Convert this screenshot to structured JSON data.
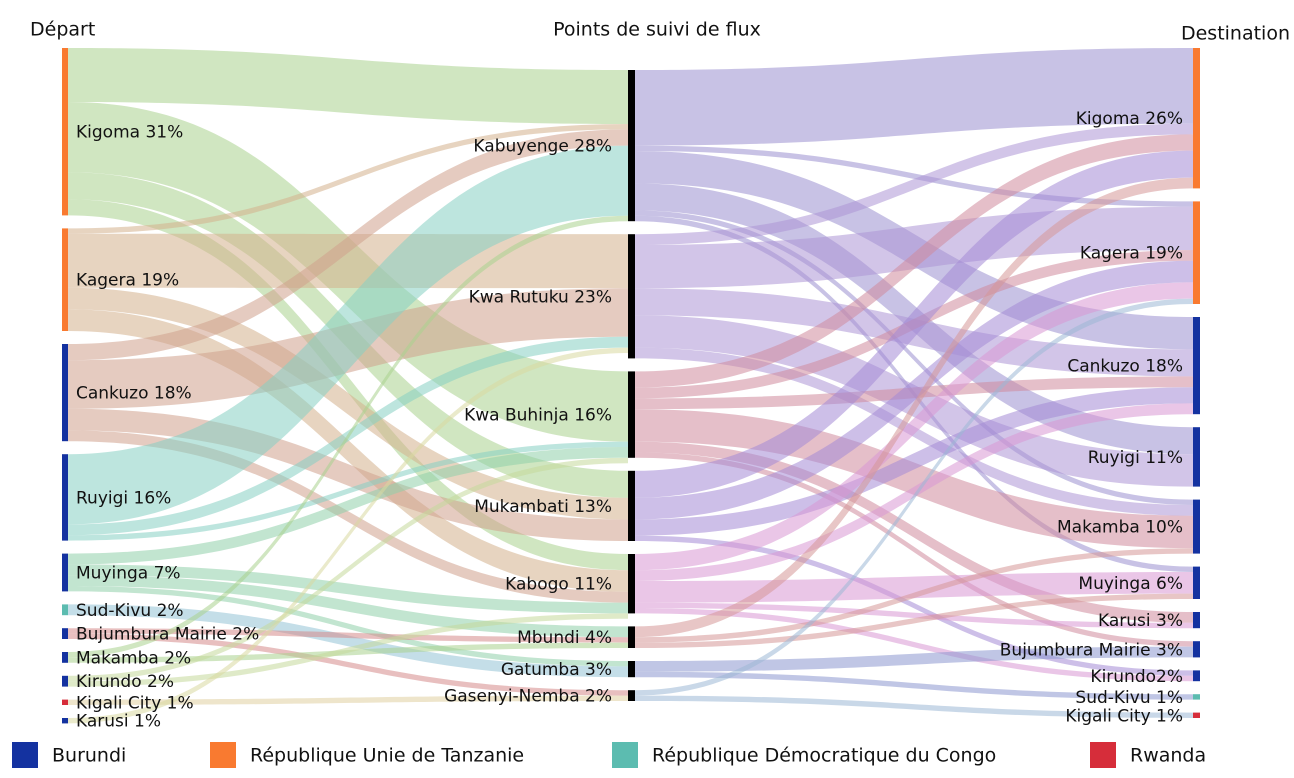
{
  "columns": [
    {
      "title": "Départ",
      "nodes": [
        {
          "label": "Kigoma 31%",
          "value": 31,
          "color": "#f97a30",
          "flow_color": "#a9d18e"
        },
        {
          "label": "Kagera 19%",
          "value": 19,
          "color": "#f97a30",
          "flow_color": "#d4b08c"
        },
        {
          "label": "Cankuzo 18%",
          "value": 18,
          "color": "#1432a0",
          "flow_color": "#d0a08c"
        },
        {
          "label": "Ruyigi 16%",
          "value": 16,
          "color": "#1432a0",
          "flow_color": "#86cfc2"
        },
        {
          "label": "Muyinga 7%",
          "value": 7,
          "color": "#1432a0",
          "flow_color": "#8fcfaa"
        },
        {
          "label": "Sud-Kivu 2%",
          "value": 2,
          "color": "#5cbcb0",
          "flow_color": "#94c3d6"
        },
        {
          "label": "Bujumbura Mairie 2%",
          "value": 2,
          "color": "#1432a0",
          "flow_color": "#d68a8a"
        },
        {
          "label": "Makamba 2%",
          "value": 2,
          "color": "#1432a0",
          "flow_color": "#a9d18e"
        },
        {
          "label": "Kirundo 2%",
          "value": 2,
          "color": "#1432a0",
          "flow_color": "#c5d99b"
        },
        {
          "label": "Kigali City 1%",
          "value": 1,
          "color": "#d62d3a",
          "flow_color": "#e0d0a0"
        },
        {
          "label": "Karusi 1%",
          "value": 1,
          "color": "#1432a0",
          "flow_color": "#d8d8a0"
        }
      ]
    },
    {
      "title": "Points de suivi de flux",
      "nodes": [
        {
          "label": "Kabuyenge 28%",
          "value": 28,
          "color": "#000000",
          "flow_color": "#9b90cf"
        },
        {
          "label": "Kwa Rutuku 23%",
          "value": 23,
          "color": "#000000",
          "flow_color": "#ad95d6"
        },
        {
          "label": "Kwa Buhinja 16%",
          "value": 16,
          "color": "#000000",
          "flow_color": "#d08a9c"
        },
        {
          "label": "Mukambati 13%",
          "value": 13,
          "color": "#000000",
          "flow_color": "#a48ad6"
        },
        {
          "label": "Kabogo 11%",
          "value": 11,
          "color": "#000000",
          "flow_color": "#d998d4"
        },
        {
          "label": "Mbundi 4%",
          "value": 4,
          "color": "#000000",
          "flow_color": "#d69898"
        },
        {
          "label": "Gatumba 3%",
          "value": 3,
          "color": "#000000",
          "flow_color": "#8c98d0"
        },
        {
          "label": "Gasenyi-Nemba 2%",
          "value": 2,
          "color": "#000000",
          "flow_color": "#9cb8d6"
        }
      ]
    },
    {
      "title": "Destination",
      "nodes": [
        {
          "label": "Kigoma 26%",
          "value": 26,
          "color": "#f97a30"
        },
        {
          "label": "Kagera 19%",
          "value": 19,
          "color": "#f97a30"
        },
        {
          "label": "Cankuzo 18%",
          "value": 18,
          "color": "#1432a0"
        },
        {
          "label": "Ruyigi 11%",
          "value": 11,
          "color": "#1432a0"
        },
        {
          "label": "Makamba 10%",
          "value": 10,
          "color": "#1432a0"
        },
        {
          "label": "Muyinga 6%",
          "value": 6,
          "color": "#1432a0"
        },
        {
          "label": "Karusi 3%",
          "value": 3,
          "color": "#1432a0"
        },
        {
          "label": "Bujumbura Mairie 3%",
          "value": 3,
          "color": "#1432a0"
        },
        {
          "label": "Kirundo2%",
          "value": 2,
          "color": "#1432a0"
        },
        {
          "label": "Sud-Kivu 1%",
          "value": 1,
          "color": "#5cbcb0"
        },
        {
          "label": "Kigali City 1%",
          "value": 1,
          "color": "#d62d3a"
        }
      ]
    }
  ],
  "links": [
    [
      {
        "source": 0,
        "target": 0,
        "value": 10
      },
      {
        "source": 0,
        "target": 2,
        "value": 13
      },
      {
        "source": 0,
        "target": 3,
        "value": 5
      },
      {
        "source": 0,
        "target": 4,
        "value": 3
      },
      {
        "source": 1,
        "target": 0,
        "value": 1
      },
      {
        "source": 1,
        "target": 1,
        "value": 10
      },
      {
        "source": 1,
        "target": 3,
        "value": 4
      },
      {
        "source": 1,
        "target": 4,
        "value": 4
      },
      {
        "source": 2,
        "target": 0,
        "value": 3
      },
      {
        "source": 2,
        "target": 1,
        "value": 9
      },
      {
        "source": 2,
        "target": 3,
        "value": 4
      },
      {
        "source": 2,
        "target": 4,
        "value": 2
      },
      {
        "source": 3,
        "target": 0,
        "value": 13
      },
      {
        "source": 3,
        "target": 1,
        "value": 2
      },
      {
        "source": 3,
        "target": 2,
        "value": 1
      },
      {
        "source": 4,
        "target": 2,
        "value": 2
      },
      {
        "source": 4,
        "target": 4,
        "value": 2
      },
      {
        "source": 4,
        "target": 5,
        "value": 2
      },
      {
        "source": 4,
        "target": 6,
        "value": 1
      },
      {
        "source": 5,
        "target": 6,
        "value": 2
      },
      {
        "source": 6,
        "target": 5,
        "value": 1
      },
      {
        "source": 6,
        "target": 7,
        "value": 1
      },
      {
        "source": 7,
        "target": 0,
        "value": 1
      },
      {
        "source": 7,
        "target": 5,
        "value": 1
      },
      {
        "source": 8,
        "target": 2,
        "value": 1
      },
      {
        "source": 8,
        "target": 4,
        "value": 1
      },
      {
        "source": 9,
        "target": 7,
        "value": 1
      },
      {
        "source": 10,
        "target": 1,
        "value": 1
      }
    ],
    [
      {
        "source": 0,
        "target": 0,
        "value": 14
      },
      {
        "source": 0,
        "target": 1,
        "value": 1
      },
      {
        "source": 0,
        "target": 2,
        "value": 6
      },
      {
        "source": 0,
        "target": 3,
        "value": 5
      },
      {
        "source": 0,
        "target": 4,
        "value": 1
      },
      {
        "source": 0,
        "target": 5,
        "value": 1
      },
      {
        "source": 1,
        "target": 0,
        "value": 2
      },
      {
        "source": 1,
        "target": 1,
        "value": 8
      },
      {
        "source": 1,
        "target": 2,
        "value": 5
      },
      {
        "source": 1,
        "target": 3,
        "value": 6
      },
      {
        "source": 1,
        "target": 4,
        "value": 2
      },
      {
        "source": 2,
        "target": 0,
        "value": 3
      },
      {
        "source": 2,
        "target": 1,
        "value": 2
      },
      {
        "source": 2,
        "target": 2,
        "value": 2
      },
      {
        "source": 2,
        "target": 4,
        "value": 6
      },
      {
        "source": 2,
        "target": 6,
        "value": 2
      },
      {
        "source": 2,
        "target": 7,
        "value": 1
      },
      {
        "source": 3,
        "target": 0,
        "value": 5
      },
      {
        "source": 3,
        "target": 1,
        "value": 4
      },
      {
        "source": 3,
        "target": 2,
        "value": 3
      },
      {
        "source": 3,
        "target": 8,
        "value": 1
      },
      {
        "source": 4,
        "target": 1,
        "value": 3
      },
      {
        "source": 4,
        "target": 2,
        "value": 2
      },
      {
        "source": 4,
        "target": 5,
        "value": 4
      },
      {
        "source": 4,
        "target": 6,
        "value": 1
      },
      {
        "source": 4,
        "target": 8,
        "value": 1
      },
      {
        "source": 5,
        "target": 0,
        "value": 2
      },
      {
        "source": 5,
        "target": 4,
        "value": 1
      },
      {
        "source": 5,
        "target": 5,
        "value": 1
      },
      {
        "source": 6,
        "target": 7,
        "value": 2
      },
      {
        "source": 6,
        "target": 9,
        "value": 1
      },
      {
        "source": 7,
        "target": 1,
        "value": 1
      },
      {
        "source": 7,
        "target": 10,
        "value": 1
      }
    ]
  ],
  "legend": [
    {
      "label": "Burundi",
      "color": "#1432a0"
    },
    {
      "label": "République Unie de Tanzanie",
      "color": "#f97a30"
    },
    {
      "label": "République Démocratique du Congo",
      "color": "#5cbcb0"
    },
    {
      "label": "Rwanda",
      "color": "#d62d3a"
    }
  ]
}
